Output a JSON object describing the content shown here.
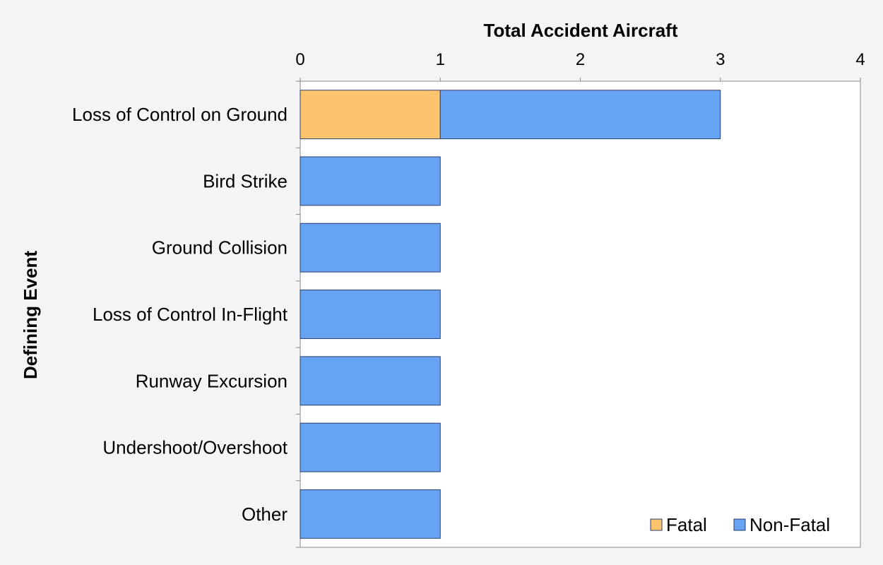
{
  "chart_data": {
    "type": "bar",
    "orientation": "horizontal",
    "stacked": true,
    "title": "",
    "xlabel": "Total Accident Aircraft",
    "ylabel": "Defining Event",
    "xlim": [
      0,
      4
    ],
    "xticks": [
      0,
      1,
      2,
      3,
      4
    ],
    "x_axis_position": "top",
    "grid": false,
    "legend_position": "bottom-right",
    "categories": [
      "Loss of Control on Ground",
      "Bird Strike",
      "Ground Collision",
      "Loss of Control In-Flight",
      "Runway Excursion",
      "Undershoot/Overshoot",
      "Other"
    ],
    "series": [
      {
        "name": "Fatal",
        "color": "#fcc46c",
        "values": [
          1,
          0,
          0,
          0,
          0,
          0,
          0
        ]
      },
      {
        "name": "Non-Fatal",
        "color": "#66a3f2",
        "values": [
          2,
          1,
          1,
          1,
          1,
          1,
          1
        ]
      }
    ]
  }
}
